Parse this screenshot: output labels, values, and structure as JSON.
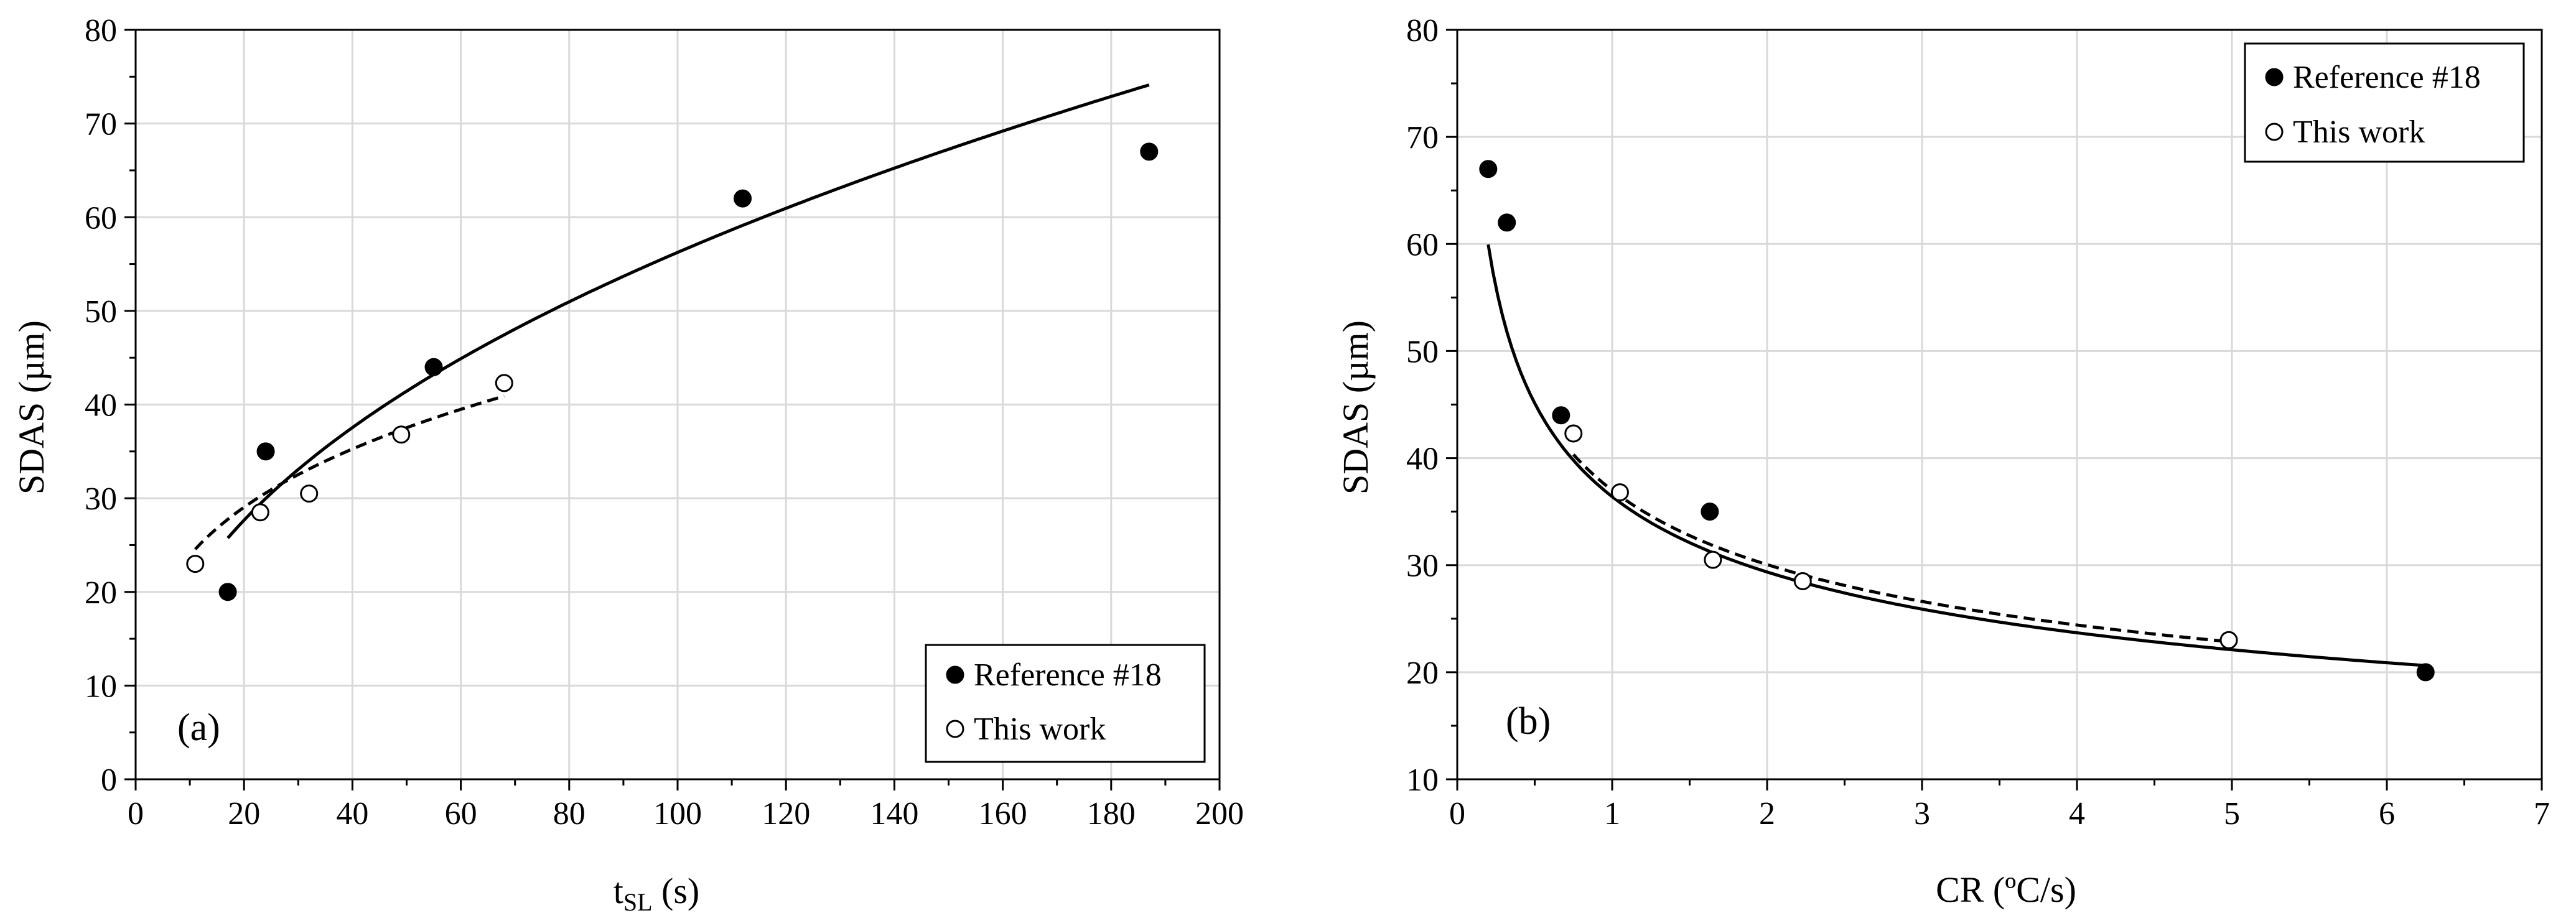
{
  "colors": {
    "background": "#ffffff",
    "axis": "#000000",
    "grid": "#d9d9d9",
    "marker_filled": "#000000",
    "marker_open_fill": "#ffffff"
  },
  "chart_data": [
    {
      "type": "scatter",
      "panel_label": "(a)",
      "title": "",
      "xlabel": "t",
      "xlabel_subscript": "SL",
      "xlabel_suffix": " (s)",
      "ylabel": "SDAS (µm)",
      "xlim": [
        0,
        200
      ],
      "ylim": [
        0,
        80
      ],
      "xticks": [
        0,
        20,
        40,
        60,
        80,
        100,
        120,
        140,
        160,
        180,
        200
      ],
      "yticks": [
        0,
        10,
        20,
        30,
        40,
        50,
        60,
        70,
        80
      ],
      "grid": true,
      "legend_position": "bottom-right",
      "series": [
        {
          "name": "Reference #18",
          "marker": "filled-circle",
          "x": [
            17,
            24,
            55,
            112,
            187
          ],
          "y": [
            20,
            35,
            44,
            62,
            67
          ]
        },
        {
          "name": "This work",
          "marker": "open-circle",
          "x": [
            11,
            23,
            32,
            49,
            68
          ],
          "y": [
            23,
            28.5,
            30.5,
            36.8,
            42.3
          ]
        }
      ],
      "fit_lines": [
        {
          "series": "Reference #18",
          "style": "solid",
          "model": "power",
          "a": 7.38,
          "b": 0.441,
          "x_range": [
            17,
            187
          ]
        },
        {
          "series": "This work",
          "style": "dashed",
          "model": "power",
          "a": 12.55,
          "b": 0.28,
          "x_range": [
            11,
            68
          ]
        }
      ]
    },
    {
      "type": "scatter",
      "panel_label": "(b)",
      "title": "",
      "xlabel": "CR (ºC/s)",
      "xlabel_subscript": "",
      "xlabel_suffix": "",
      "ylabel": "SDAS (µm)",
      "xlim": [
        0,
        7
      ],
      "ylim": [
        10,
        80
      ],
      "xticks": [
        0,
        1,
        2,
        3,
        4,
        5,
        6,
        7
      ],
      "yticks": [
        10,
        20,
        30,
        40,
        50,
        60,
        70,
        80
      ],
      "grid": true,
      "legend_position": "top-right",
      "series": [
        {
          "name": "Reference #18",
          "marker": "filled-circle",
          "x": [
            0.2,
            0.32,
            0.67,
            1.63,
            6.25
          ],
          "y": [
            67,
            62,
            44,
            35,
            20
          ]
        },
        {
          "name": "This work",
          "marker": "open-circle",
          "x": [
            0.75,
            1.05,
            1.65,
            2.23,
            4.98
          ],
          "y": [
            42.3,
            36.8,
            30.5,
            28.5,
            23
          ]
        }
      ],
      "fit_lines": [
        {
          "series": "Reference #18",
          "style": "solid",
          "model": "power",
          "a": 36.4,
          "b": -0.31,
          "x_range": [
            0.2,
            6.25
          ]
        },
        {
          "series": "This work",
          "style": "dashed",
          "model": "power",
          "a": 37.0,
          "b": -0.3,
          "x_range": [
            0.75,
            4.98
          ]
        }
      ]
    }
  ]
}
